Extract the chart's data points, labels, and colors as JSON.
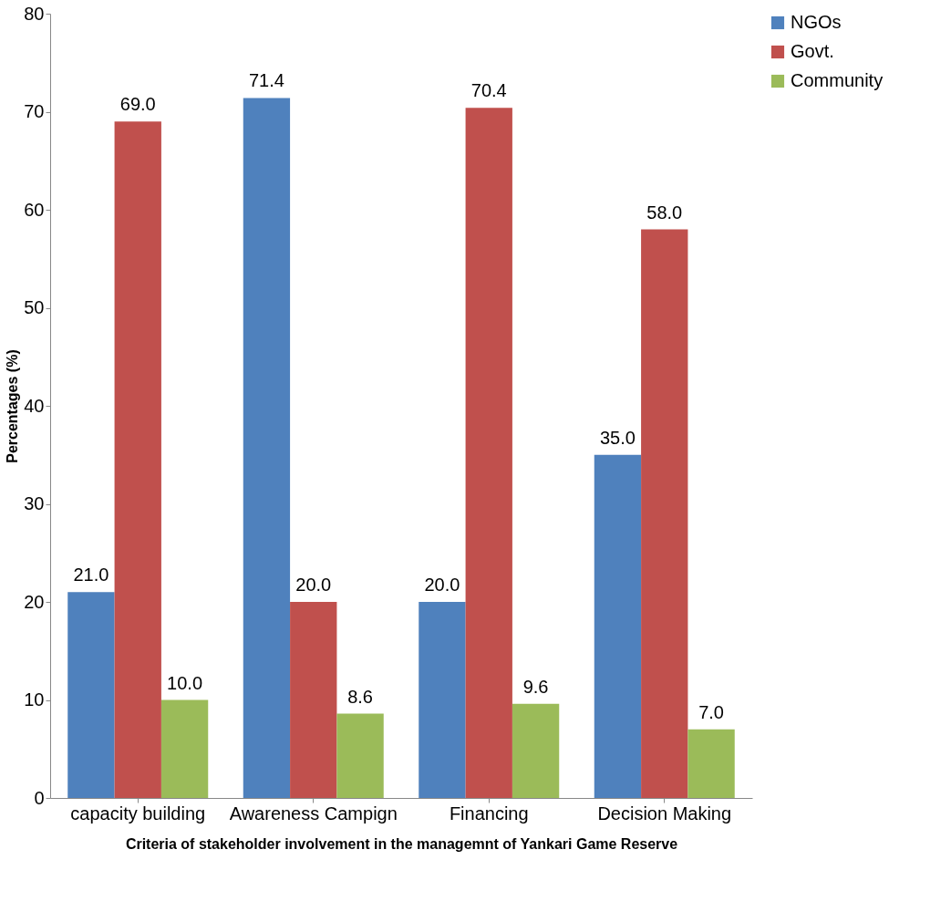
{
  "chart_data": {
    "type": "bar",
    "xlabel": "Criteria of stakeholder involvement in the managemnt of Yankari Game Reserve",
    "ylabel": "Percentages (%)",
    "categories": [
      "capacity building",
      "Awareness Campign",
      "Financing",
      "Decision Making"
    ],
    "series": [
      {
        "name": "NGOs",
        "color": "#4f81bd",
        "values": [
          21.0,
          71.4,
          20.0,
          35.0
        ],
        "value_labels": [
          "21.0",
          "71.4",
          "20.0",
          "35.0"
        ]
      },
      {
        "name": "Govt.",
        "color": "#c0504d",
        "values": [
          69.0,
          20.0,
          70.4,
          58.0
        ],
        "value_labels": [
          "69.0",
          "20.0",
          "70.4",
          "58.0"
        ]
      },
      {
        "name": "Community",
        "color": "#9bbb59",
        "values": [
          10.0,
          8.6,
          9.6,
          7.0
        ],
        "value_labels": [
          "10.0",
          "8.6",
          "9.6",
          "7.0"
        ]
      }
    ],
    "ylim": [
      0,
      80
    ],
    "yticks": [
      0,
      10,
      20,
      30,
      40,
      50,
      60,
      70,
      80
    ],
    "grid": false,
    "legend": "right"
  }
}
